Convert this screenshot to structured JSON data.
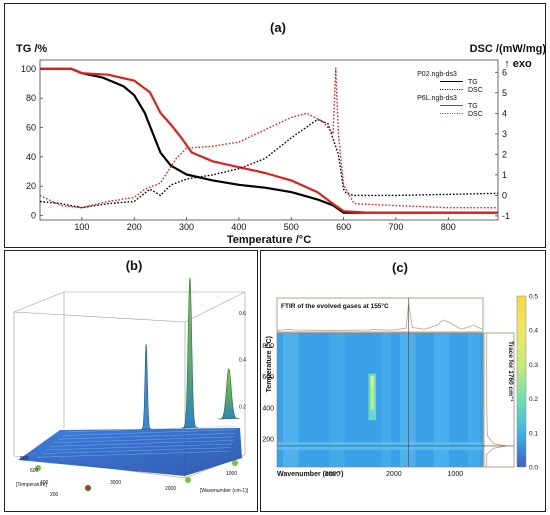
{
  "panels": {
    "a": {
      "label": "(a)"
    },
    "b": {
      "label": "(b)"
    },
    "c": {
      "label": "(c)"
    }
  },
  "chart_data": [
    {
      "panel": "a",
      "type": "line",
      "title": "(a)",
      "xlabel": "Temperature /°C",
      "ylabel_left": "TG /%",
      "ylabel_right": "DSC /(mW/mg)",
      "right_arrow_label": "↑ exo",
      "xlim": [
        20,
        895
      ],
      "ylim_left": [
        -3,
        106
      ],
      "ylim_right": [
        -1.2,
        6.6
      ],
      "xticks": [
        100,
        200,
        300,
        400,
        500,
        600,
        700,
        800
      ],
      "yticks_left": [
        0,
        20,
        40,
        60,
        80,
        100
      ],
      "yticks_right": [
        -1,
        0,
        1,
        2,
        3,
        4,
        5,
        6
      ],
      "legend": [
        {
          "sample": "P02.ngb-ds3",
          "entries": [
            {
              "text": "TG",
              "color": "#000000",
              "style": "solid"
            },
            {
              "text": "DSC",
              "color": "#000000",
              "style": "dotted"
            }
          ]
        },
        {
          "sample": "P6L.ngb-ds3",
          "entries": [
            {
              "text": "TG",
              "color": "#e02020",
              "style": "solid"
            },
            {
              "text": "DSC",
              "color": "#e02020",
              "style": "dotted"
            }
          ]
        }
      ],
      "series": [
        {
          "id": "p02-tg",
          "axis": "left",
          "color": "#000000",
          "style": "solid",
          "x": [
            20,
            80,
            100,
            140,
            180,
            200,
            220,
            240,
            250,
            270,
            300,
            350,
            400,
            450,
            500,
            550,
            580,
            600,
            650,
            700,
            800,
            895
          ],
          "y": [
            100,
            100,
            97,
            94,
            88,
            82,
            70,
            52,
            43,
            34,
            28,
            24,
            21,
            19,
            16,
            11,
            7,
            2,
            2,
            2,
            2,
            2
          ]
        },
        {
          "id": "p6l-tg",
          "axis": "left",
          "color": "#e02020",
          "style": "solid",
          "x": [
            20,
            80,
            100,
            150,
            200,
            230,
            250,
            270,
            290,
            310,
            350,
            400,
            450,
            500,
            550,
            580,
            600,
            650,
            700,
            800,
            895
          ],
          "y": [
            100,
            100,
            97,
            96,
            92,
            84,
            70,
            62,
            53,
            43,
            37,
            33,
            29,
            24,
            16,
            8,
            3,
            2,
            2,
            2,
            2
          ]
        },
        {
          "id": "p02-dsc",
          "axis": "right",
          "color": "#000000",
          "style": "dotted",
          "x": [
            20,
            60,
            100,
            150,
            200,
            230,
            250,
            270,
            300,
            350,
            400,
            450,
            500,
            550,
            570,
            590,
            600,
            605,
            620,
            700,
            800,
            895
          ],
          "y": [
            -0.3,
            -0.4,
            -0.6,
            -0.4,
            -0.3,
            0.3,
            0.0,
            0.5,
            0.8,
            1.0,
            1.3,
            1.8,
            2.8,
            3.7,
            3.5,
            2.0,
            0.3,
            0.1,
            0.0,
            0.0,
            0.05,
            0.1
          ]
        },
        {
          "id": "p6l-dsc",
          "axis": "right",
          "color": "#e02020",
          "style": "dotted",
          "x": [
            20,
            60,
            100,
            150,
            200,
            220,
            250,
            280,
            300,
            350,
            400,
            450,
            500,
            530,
            560,
            580,
            585,
            590,
            600,
            620,
            700,
            800,
            895
          ],
          "y": [
            0.0,
            -0.5,
            -0.6,
            -0.3,
            -0.1,
            0.3,
            0.6,
            1.8,
            2.3,
            2.4,
            2.6,
            3.2,
            3.8,
            4.0,
            3.6,
            3.0,
            6.2,
            3.0,
            0.5,
            -0.4,
            -0.5,
            -0.6,
            -0.6
          ]
        }
      ]
    },
    {
      "panel": "b",
      "type": "area",
      "title": "(b)",
      "xlabel": "Wavenumber (cm-1)",
      "ylabel": "Temperature",
      "xticks": [
        2000,
        3000,
        1000
      ],
      "yticks": [
        200,
        400,
        600,
        800
      ],
      "zticks": [
        0.2,
        0.4,
        0.6
      ],
      "xlim": [
        1000,
        3600
      ],
      "zlim": [
        0,
        0.6
      ],
      "series": [
        {
          "name": "",
          "x": [
            3600,
            3000,
            2450,
            2350,
            2250,
            2000,
            1800,
            1700,
            1600,
            1300,
            1000
          ],
          "y": [
            0.02,
            0.02,
            0.05,
            0.34,
            0.08,
            0.03,
            0.1,
            0.6,
            0.1,
            0.08,
            0.02
          ]
        }
      ]
    },
    {
      "panel": "c",
      "type": "heatmap",
      "title": "(c)",
      "xlabel": "Wavenumber (cm⁻¹)",
      "ylabel": "Temperature (°C)",
      "top_label": "FTIR of the evolved gases at 155°C",
      "right_label": "Trace for 1760 cm⁻¹",
      "xlim": [
        3900,
        550
      ],
      "ylim": [
        20,
        880
      ],
      "xticks": [
        3000,
        2000,
        1000
      ],
      "yticks": [
        200,
        400,
        600,
        800
      ],
      "colorbar": {
        "range": [
          0.0,
          0.5
        ],
        "ticks": [
          0.0,
          0.1,
          0.2,
          0.3,
          0.4,
          0.5
        ]
      },
      "crosshair": {
        "wavenumber": 1760,
        "temperature": 155
      },
      "hotspot": {
        "wavenumber": [
          2380,
          2320
        ],
        "temperature": [
          320,
          620
        ],
        "peak": 0.25
      },
      "top_spectrum": {
        "x": [
          3900,
          3700,
          3600,
          3000,
          2400,
          2350,
          2000,
          1800,
          1760,
          1700,
          1500,
          1300,
          1200,
          1100,
          900,
          700,
          550
        ],
        "y": [
          0.02,
          0.06,
          0.03,
          0.02,
          0.03,
          0.05,
          0.03,
          0.1,
          0.95,
          0.12,
          0.06,
          0.2,
          0.38,
          0.3,
          0.06,
          0.2,
          0.05
        ]
      },
      "trace": {
        "temperature": [
          20,
          100,
          140,
          155,
          170,
          220,
          300,
          400,
          500,
          600,
          700,
          800,
          880
        ],
        "value": [
          0.01,
          0.01,
          0.2,
          0.55,
          0.2,
          0.04,
          0.03,
          0.02,
          0.02,
          0.02,
          0.01,
          0.01,
          0.01
        ]
      }
    }
  ]
}
